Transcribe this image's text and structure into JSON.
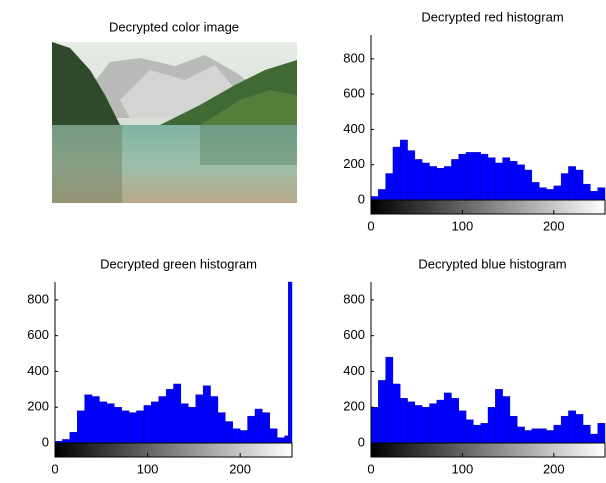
{
  "image": {
    "title": "Decrypted color image"
  },
  "chart_data": [
    {
      "type": "histogram",
      "title": "Decrypted red histogram",
      "color": "#0000ff",
      "bins": [
        0,
        8,
        16,
        24,
        32,
        40,
        48,
        56,
        64,
        72,
        80,
        88,
        96,
        104,
        112,
        120,
        128,
        136,
        144,
        152,
        160,
        168,
        176,
        184,
        192,
        200,
        208,
        216,
        224,
        232,
        240,
        248,
        256
      ],
      "values": [
        20,
        60,
        150,
        300,
        340,
        280,
        230,
        210,
        190,
        180,
        190,
        230,
        260,
        270,
        270,
        260,
        240,
        210,
        240,
        220,
        200,
        170,
        100,
        70,
        60,
        80,
        150,
        190,
        170,
        90,
        50,
        70
      ],
      "xlim": [
        0,
        256
      ],
      "ylim": [
        0,
        935
      ],
      "xticks": [
        0,
        100,
        200
      ],
      "yticks": [
        0,
        200,
        400,
        600,
        800
      ]
    },
    {
      "type": "histogram",
      "title": "Decrypted green histogram",
      "color": "#0000ff",
      "bins": [
        0,
        8,
        16,
        24,
        32,
        40,
        48,
        56,
        64,
        72,
        80,
        88,
        96,
        104,
        112,
        120,
        128,
        136,
        144,
        152,
        160,
        168,
        176,
        184,
        192,
        200,
        208,
        216,
        224,
        232,
        240,
        248,
        252,
        256
      ],
      "values": [
        10,
        20,
        60,
        180,
        270,
        260,
        230,
        220,
        200,
        180,
        170,
        180,
        210,
        230,
        260,
        300,
        330,
        220,
        200,
        270,
        320,
        260,
        170,
        120,
        80,
        70,
        150,
        190,
        170,
        80,
        30,
        40,
        900
      ],
      "xlim": [
        0,
        256
      ],
      "ylim": [
        0,
        900
      ],
      "xticks": [
        0,
        100,
        200
      ],
      "yticks": [
        0,
        200,
        400,
        600,
        800
      ]
    },
    {
      "type": "histogram",
      "title": "Decrypted blue histogram",
      "color": "#0000ff",
      "bins": [
        0,
        8,
        16,
        24,
        32,
        40,
        48,
        56,
        64,
        72,
        80,
        88,
        96,
        104,
        112,
        120,
        128,
        136,
        144,
        152,
        160,
        168,
        176,
        184,
        192,
        200,
        208,
        216,
        224,
        232,
        240,
        248,
        256
      ],
      "values": [
        200,
        350,
        480,
        330,
        250,
        230,
        210,
        200,
        220,
        240,
        280,
        250,
        180,
        130,
        100,
        110,
        200,
        300,
        260,
        150,
        90,
        70,
        80,
        80,
        70,
        100,
        150,
        180,
        160,
        100,
        50,
        110
      ],
      "xlim": [
        0,
        256
      ],
      "ylim": [
        0,
        900
      ],
      "xticks": [
        0,
        100,
        200
      ],
      "yticks": [
        0,
        200,
        400,
        600,
        800
      ]
    }
  ]
}
